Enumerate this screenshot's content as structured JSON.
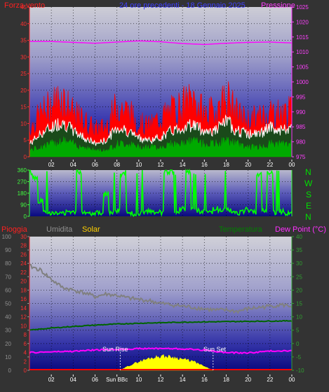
{
  "header": {
    "left_title": "Forza vento",
    "center_title": "24 ore precedenti - 18 Gennaio 2025",
    "right_title": "Pressione"
  },
  "panel2": {
    "compass_labels": [
      "N",
      "W",
      "S",
      "E",
      "N"
    ]
  },
  "panel3": {
    "legend": {
      "rain": "Pioggia",
      "humidity": "Umidita",
      "solar": "Solar",
      "temperature": "Temperatura",
      "dewpoint": "Dew Point (°C)"
    },
    "annotations": {
      "sunrise": "Sun Rise",
      "sunset": "Sun Set"
    }
  },
  "colors": {
    "wind": "#ff0000",
    "gust_avg": "#ffffff",
    "wind_low": "#00aa00",
    "pressure": "#ff00ff",
    "direction": "#00ff00",
    "rain": "#ff0000",
    "humidity": "#808080",
    "solar": "#ffff00",
    "temperature": "#006400",
    "dewpoint": "#ff00ff",
    "panel_bottom": "#0a0a80",
    "panel_top": "#c8c8c8"
  },
  "chart_data": [
    {
      "type": "line",
      "name": "wind-pressure",
      "x_ticks": [
        "02",
        "04",
        "06",
        "08",
        "10",
        "12",
        "14",
        "16",
        "18",
        "20",
        "22",
        "00"
      ],
      "y_left_ticks": [
        0,
        5,
        10,
        15,
        20,
        25,
        30,
        35,
        40,
        45
      ],
      "y_left_range": [
        0,
        45
      ],
      "y_right_ticks": [
        975,
        980,
        985,
        990,
        995,
        1000,
        1005,
        1010,
        1015,
        1020,
        1025
      ],
      "y_right_range": [
        975,
        1025
      ],
      "series": [
        {
          "role": "wind_max",
          "x": [
            0,
            1,
            2,
            3,
            4,
            5,
            6,
            7,
            8,
            9,
            10,
            11,
            12,
            13,
            14,
            15,
            16,
            17,
            18,
            19,
            20,
            21,
            22,
            23,
            24
          ],
          "values": [
            9,
            14,
            17,
            20,
            14,
            12,
            9,
            10,
            17,
            15,
            11,
            10,
            13,
            15,
            17,
            19,
            14,
            15,
            20,
            14,
            12,
            13,
            15,
            14,
            15
          ]
        },
        {
          "role": "wind_avg",
          "x": [
            0,
            1,
            2,
            3,
            4,
            5,
            6,
            7,
            8,
            9,
            10,
            11,
            12,
            13,
            14,
            15,
            16,
            17,
            18,
            19,
            20,
            21,
            22,
            23,
            24
          ],
          "values": [
            4,
            7,
            9,
            11,
            8,
            6,
            4,
            5,
            9,
            8,
            6,
            5,
            6,
            8,
            9,
            10,
            8,
            8,
            11,
            8,
            7,
            7,
            9,
            8,
            9
          ]
        },
        {
          "role": "wind_low",
          "x": [
            0,
            1,
            2,
            3,
            4,
            5,
            6,
            7,
            8,
            9,
            10,
            11,
            12,
            13,
            14,
            15,
            16,
            17,
            18,
            19,
            20,
            21,
            22,
            23,
            24
          ],
          "values": [
            2,
            3,
            4,
            5,
            4,
            3,
            2,
            2,
            4,
            4,
            3,
            3,
            3,
            4,
            4,
            5,
            4,
            4,
            5,
            4,
            3,
            3,
            4,
            4,
            4
          ]
        },
        {
          "role": "pressure",
          "x": [
            0,
            2,
            4,
            6,
            8,
            10,
            12,
            14,
            16,
            18,
            20,
            22,
            24
          ],
          "values": [
            1013.5,
            1013.5,
            1013.2,
            1012.9,
            1013.3,
            1013.7,
            1013.4,
            1012.8,
            1012.5,
            1012.9,
            1013.2,
            1013.3,
            1013.0
          ]
        }
      ]
    },
    {
      "type": "line",
      "name": "wind-direction",
      "y_ticks": [
        0,
        90,
        180,
        270,
        360
      ],
      "y_range": [
        0,
        360
      ],
      "series": [
        {
          "role": "direction",
          "x": [
            0,
            0.5,
            1,
            1.5,
            2,
            2.5,
            3,
            3.5,
            4,
            4.5,
            5,
            5.5,
            6,
            6.5,
            7,
            7.5,
            8,
            8.5,
            9,
            9.5,
            10,
            10.5,
            11,
            11.5,
            12,
            12.5,
            13,
            13.5,
            14,
            14.5,
            15,
            15.5,
            16,
            16.5,
            17,
            17.5,
            18,
            18.5,
            19,
            19.5,
            20,
            20.5,
            21,
            21.5,
            22,
            22.5,
            23,
            23.5,
            24
          ],
          "values": [
            340,
            300,
            120,
            40,
            30,
            20,
            25,
            30,
            40,
            350,
            35,
            25,
            30,
            30,
            180,
            30,
            40,
            330,
            35,
            20,
            25,
            30,
            40,
            25,
            30,
            340,
            350,
            40,
            60,
            350,
            60,
            40,
            35,
            30,
            60,
            40,
            45,
            40,
            30,
            30,
            50,
            35,
            330,
            40,
            340,
            30,
            40,
            25,
            30
          ]
        }
      ]
    },
    {
      "type": "line",
      "name": "temperature-humidity-solar",
      "y_left_ticks": [
        0,
        10,
        20,
        30,
        40,
        50,
        60,
        70,
        80,
        90,
        100
      ],
      "y_left_range": [
        0,
        100
      ],
      "y_rain_ticks": [
        0,
        2,
        4,
        6,
        8,
        10,
        12,
        14,
        16,
        18,
        20,
        22,
        24,
        26,
        28,
        30
      ],
      "y_right_ticks": [
        -10,
        -5,
        0,
        5,
        10,
        15,
        20,
        25,
        30,
        35,
        40
      ],
      "y_right_range": [
        -10,
        40
      ],
      "x_ticks": [
        "02",
        "04",
        "06",
        "Sun BBc",
        "10",
        "12",
        "14",
        "16",
        "18",
        "20",
        "22",
        "00"
      ],
      "series": [
        {
          "role": "humidity",
          "x": [
            0,
            1,
            2,
            3,
            4,
            5,
            6,
            7,
            8,
            9,
            10,
            11,
            12,
            13,
            14,
            15,
            16,
            17,
            18,
            19,
            20,
            21,
            22,
            23,
            24
          ],
          "values": [
            78,
            75,
            68,
            62,
            60,
            58,
            55,
            57,
            56,
            54,
            53,
            52,
            50,
            49,
            48,
            47,
            46,
            45,
            45,
            44,
            46,
            47,
            48,
            49,
            48
          ]
        },
        {
          "role": "temperature",
          "x": [
            0,
            2,
            4,
            6,
            8,
            10,
            12,
            14,
            16,
            18,
            20,
            22,
            24
          ],
          "values": [
            5.0,
            5.8,
            6.4,
            6.9,
            7.3,
            7.6,
            7.8,
            8.0,
            8.1,
            8.2,
            8.3,
            8.4,
            8.5
          ]
        },
        {
          "role": "dewpoint",
          "x": [
            0,
            2,
            4,
            6,
            8,
            10,
            12,
            14,
            16,
            18,
            20,
            22,
            24
          ],
          "values": [
            -3.4,
            -3.1,
            -2.9,
            -2.4,
            -2.2,
            -1.9,
            -1.8,
            -2.0,
            -2.4,
            -3.4,
            -3.5,
            -2.8,
            -2.6
          ]
        },
        {
          "role": "solar",
          "x": [
            8.3,
            9,
            10,
            11,
            12,
            13,
            14,
            15,
            16,
            16.8
          ],
          "values": [
            0,
            1.5,
            3.2,
            4.5,
            5.3,
            5.0,
            4.2,
            3.3,
            1.4,
            0
          ]
        },
        {
          "role": "rain",
          "x": [
            0,
            24
          ],
          "values": [
            0,
            0
          ]
        }
      ]
    }
  ]
}
